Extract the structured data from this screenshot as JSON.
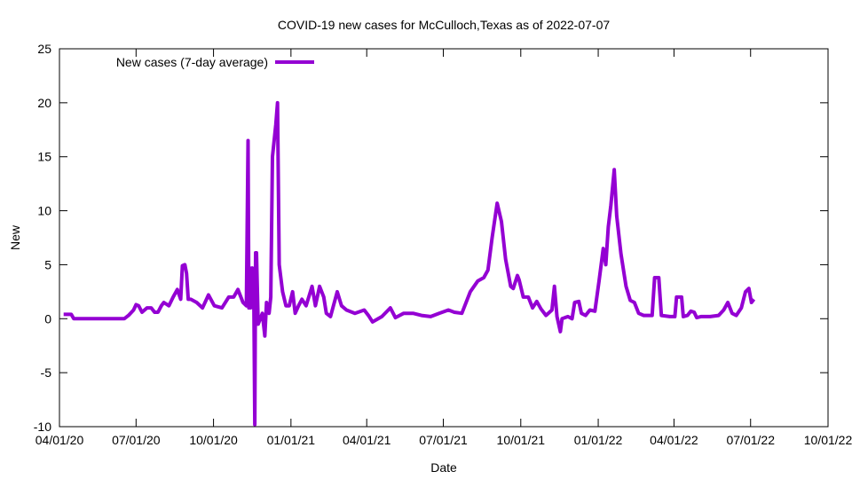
{
  "chart_data": {
    "type": "line",
    "title": "COVID-19 new cases for McCulloch,Texas as of 2022-07-07",
    "xlabel": "Date",
    "ylabel": "New",
    "x_start_date": "2020-04-01",
    "x_units": "days since 2020-04-01",
    "xlim": [
      0,
      913
    ],
    "ylim": [
      -10,
      25
    ],
    "xticks": [
      {
        "day": 0,
        "label": "04/01/20"
      },
      {
        "day": 91,
        "label": "07/01/20"
      },
      {
        "day": 183,
        "label": "10/01/20"
      },
      {
        "day": 275,
        "label": "01/01/21"
      },
      {
        "day": 365,
        "label": "04/01/21"
      },
      {
        "day": 456,
        "label": "07/01/21"
      },
      {
        "day": 548,
        "label": "10/01/21"
      },
      {
        "day": 640,
        "label": "01/01/22"
      },
      {
        "day": 730,
        "label": "04/01/22"
      },
      {
        "day": 821,
        "label": "07/01/22"
      },
      {
        "day": 913,
        "label": "10/01/22"
      }
    ],
    "yticks": [
      -10,
      -5,
      0,
      5,
      10,
      15,
      20,
      25
    ],
    "ytick_labels": [
      "-10",
      "-5",
      "0",
      "5",
      "10",
      "15",
      "20",
      "25"
    ],
    "grid": false,
    "legend_position": "top-left",
    "series": [
      {
        "name": "New cases (7-day average)",
        "color": "#9400d3",
        "x": [
          5,
          9,
          14,
          17,
          77,
          82,
          88,
          91,
          94,
          98,
          104,
          109,
          113,
          117,
          121,
          124,
          130,
          135,
          140,
          144,
          146,
          149,
          151,
          153,
          156,
          163,
          170,
          177,
          184,
          193,
          201,
          207,
          212,
          218,
          222,
          224,
          225,
          226,
          227,
          229,
          231,
          232,
          233,
          234,
          236,
          241,
          244,
          246,
          249,
          251,
          253,
          257,
          259,
          261,
          265,
          269,
          273,
          277,
          280,
          284,
          288,
          293,
          300,
          304,
          309,
          314,
          317,
          322,
          330,
          335,
          341,
          351,
          362,
          367,
          372,
          383,
          393,
          399,
          409,
          420,
          430,
          441,
          451,
          462,
          469,
          478,
          488,
          497,
          504,
          509,
          514,
          520,
          525,
          530,
          536,
          539,
          544,
          546,
          551,
          557,
          562,
          567,
          572,
          578,
          585,
          588,
          591,
          595,
          597,
          604,
          609,
          612,
          617,
          620,
          625,
          630,
          636,
          641,
          646,
          649,
          652,
          655,
          659,
          662,
          667,
          673,
          678,
          683,
          688,
          694,
          704,
          707,
          712,
          715,
          725,
          731,
          733,
          739,
          741,
          746,
          750,
          754,
          757,
          762,
          773,
          783,
          789,
          794,
          799,
          804,
          810,
          815,
          819,
          822,
          825
        ],
        "y": [
          0.4,
          0.4,
          0.4,
          0,
          0,
          0.3,
          0.8,
          1.3,
          1.2,
          0.6,
          1.0,
          1.0,
          0.6,
          0.6,
          1.2,
          1.5,
          1.2,
          2.0,
          2.7,
          1.8,
          4.9,
          5.0,
          4.2,
          1.8,
          1.8,
          1.5,
          1.0,
          2.2,
          1.2,
          1.0,
          2.0,
          2.0,
          2.7,
          1.5,
          1.2,
          16.5,
          1.0,
          4.7,
          1.0,
          4.7,
          1.0,
          -9.8,
          6.1,
          6.1,
          -0.5,
          0.5,
          -1.6,
          1.5,
          0.5,
          2.0,
          15.0,
          18.0,
          20.0,
          5.0,
          2.5,
          1.2,
          1.2,
          2.5,
          0.5,
          1.2,
          1.8,
          1.2,
          3.0,
          1.2,
          3.0,
          2.0,
          0.5,
          0.2,
          2.5,
          1.2,
          0.8,
          0.5,
          0.8,
          0.3,
          -0.3,
          0.2,
          1.0,
          0.1,
          0.5,
          0.5,
          0.3,
          0.2,
          0.5,
          0.8,
          0.6,
          0.5,
          2.5,
          3.5,
          3.8,
          4.5,
          7.5,
          10.7,
          9.0,
          5.5,
          3.0,
          2.8,
          4.0,
          3.6,
          2.0,
          2.0,
          1.0,
          1.6,
          0.9,
          0.3,
          0.8,
          3.0,
          0.2,
          -1.2,
          0,
          0.2,
          0,
          1.5,
          1.6,
          0.5,
          0.3,
          0.8,
          0.7,
          3.5,
          6.5,
          5.0,
          8.5,
          10.5,
          13.8,
          9.5,
          6.0,
          3.0,
          1.7,
          1.5,
          0.5,
          0.3,
          0.3,
          3.8,
          3.8,
          0.3,
          0.2,
          0.2,
          2.0,
          2.0,
          0.2,
          0.3,
          0.7,
          0.6,
          0.1,
          0.2,
          0.2,
          0.3,
          0.8,
          1.5,
          0.5,
          0.3,
          1.0,
          2.5,
          2.8,
          1.5,
          1.8
        ]
      }
    ]
  }
}
